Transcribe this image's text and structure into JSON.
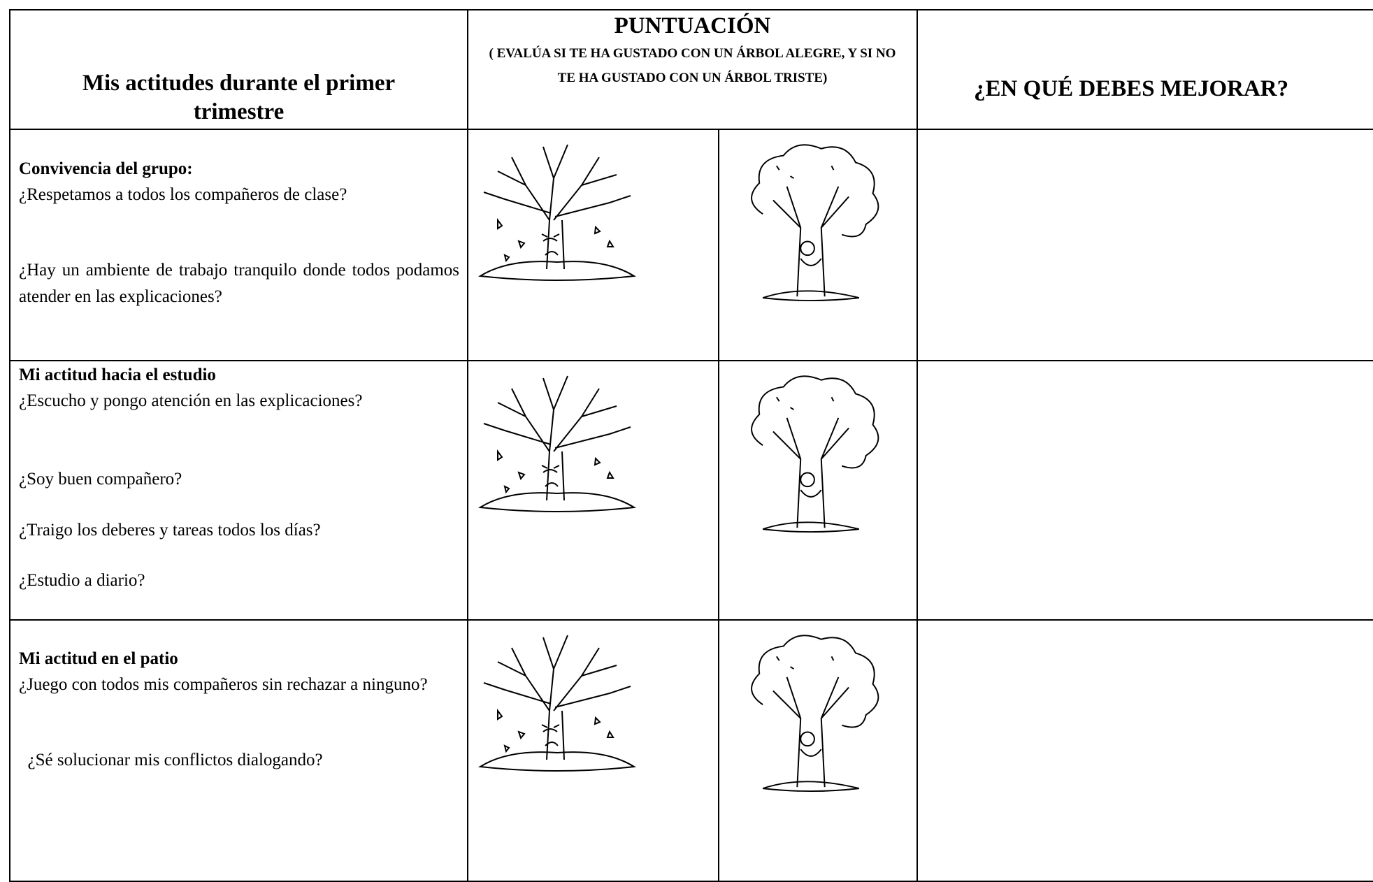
{
  "header": {
    "col1": "Mis actitudes durante el primer trimestre",
    "col2_title": "PUNTUACIÓN",
    "col2_note": "( EVALÚA SI TE HA GUSTADO CON UN ÁRBOL ALEGRE, Y SI NO TE HA GUSTADO CON UN ÁRBOL TRISTE)",
    "col3": "¿EN QUÉ DEBES MEJORAR?"
  },
  "rows": [
    {
      "title": "Convivencia del grupo:",
      "questions": [
        "¿Respetamos a todos los compañeros de clase?",
        "¿Hay un ambiente de trabajo tranquilo donde todos podamos atender en las explicaciones?"
      ]
    },
    {
      "title": "Mi actitud hacia el estudio",
      "questions": [
        "¿Escucho y pongo atención en las explicaciones?",
        "¿Soy buen compañero?",
        "¿Traigo los deberes y tareas todos los días?",
        "¿Estudio a diario?"
      ]
    },
    {
      "title": "Mi actitud en el patio",
      "questions": [
        "¿Juego con todos mis compañeros sin rechazar a ninguno?",
        "  ¿Sé solucionar mis conflictos dialogando?"
      ]
    }
  ]
}
